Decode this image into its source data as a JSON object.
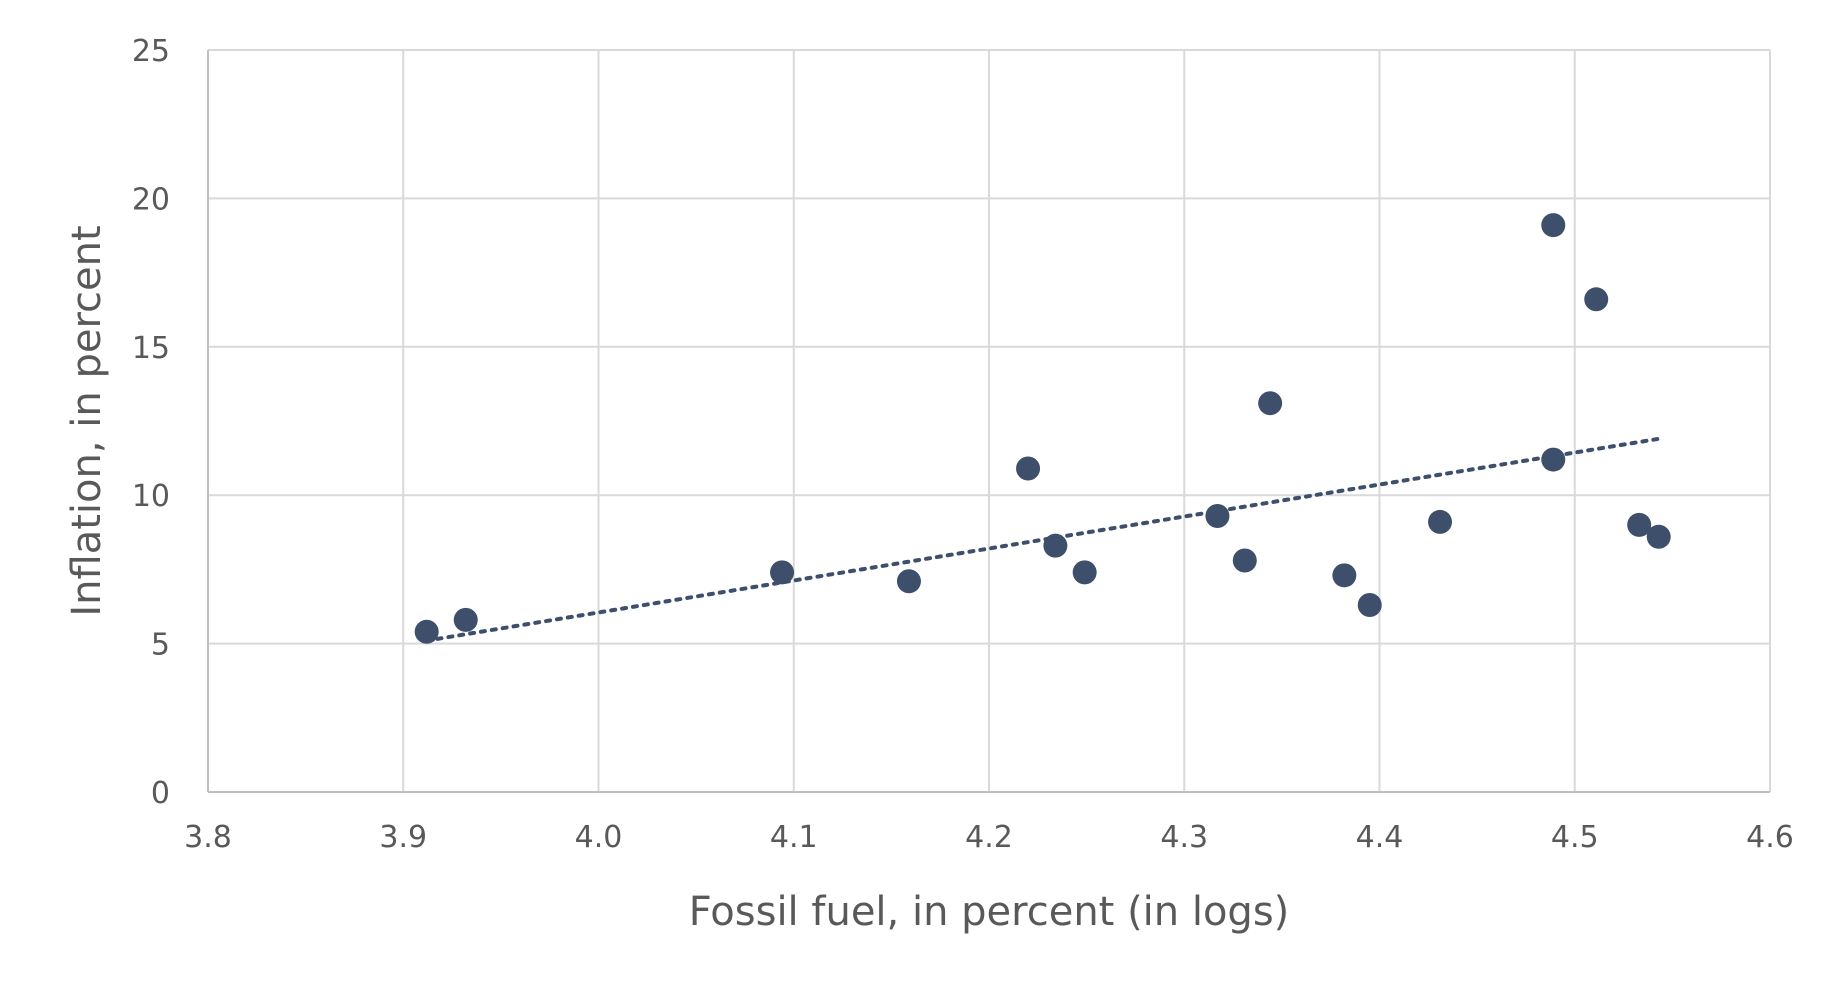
{
  "chart_data": {
    "type": "scatter",
    "title": "",
    "xlabel": "Fossil fuel, in percent (in logs)",
    "ylabel": "Inflation, in percent",
    "xlim": [
      3.8,
      4.6
    ],
    "ylim": [
      0,
      25
    ],
    "x_ticks": [
      "3.8",
      "3.9",
      "4.0",
      "4.1",
      "4.2",
      "4.3",
      "4.4",
      "4.5",
      "4.6"
    ],
    "y_ticks": [
      "0",
      "5",
      "10",
      "15",
      "20",
      "25"
    ],
    "grid": true,
    "legend": "none",
    "colors": {
      "points": "#3d4f6b",
      "trendline": "#3d4f6b",
      "grid": "#d9d9d9"
    },
    "series": [
      {
        "points": [
          {
            "x": 3.912,
            "y": 5.4
          },
          {
            "x": 3.932,
            "y": 5.8
          },
          {
            "x": 4.094,
            "y": 7.4
          },
          {
            "x": 4.159,
            "y": 7.1
          },
          {
            "x": 4.22,
            "y": 10.9
          },
          {
            "x": 4.234,
            "y": 8.3
          },
          {
            "x": 4.249,
            "y": 7.4
          },
          {
            "x": 4.317,
            "y": 9.3
          },
          {
            "x": 4.331,
            "y": 7.8
          },
          {
            "x": 4.344,
            "y": 13.1
          },
          {
            "x": 4.382,
            "y": 7.3
          },
          {
            "x": 4.395,
            "y": 6.3
          },
          {
            "x": 4.431,
            "y": 9.1
          },
          {
            "x": 4.489,
            "y": 19.1
          },
          {
            "x": 4.489,
            "y": 11.2
          },
          {
            "x": 4.511,
            "y": 16.6
          },
          {
            "x": 4.533,
            "y": 9.0
          },
          {
            "x": 4.543,
            "y": 8.6
          }
        ]
      }
    ],
    "trendline": {
      "style": "dotted",
      "from": {
        "x": 3.912,
        "y": 5.1
      },
      "to": {
        "x": 4.543,
        "y": 11.9
      }
    }
  }
}
